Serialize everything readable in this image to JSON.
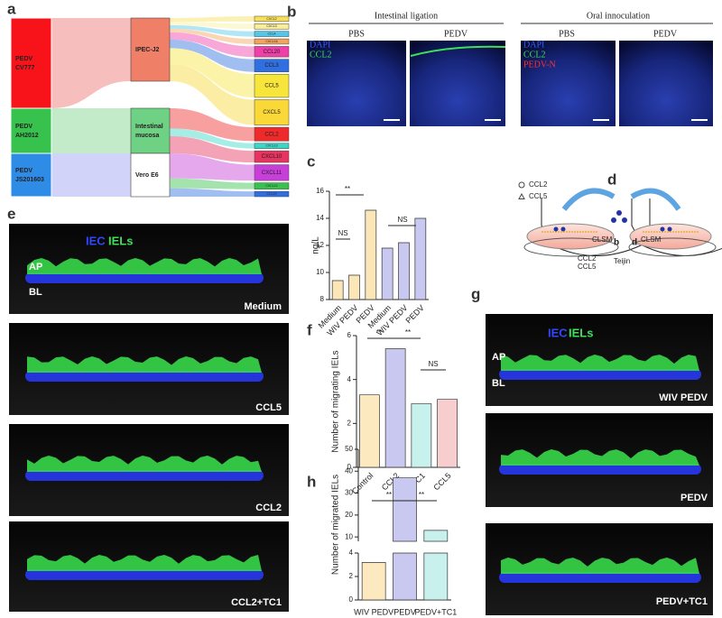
{
  "panel_labels": [
    "a",
    "b",
    "c",
    "d",
    "e",
    "f",
    "g",
    "h"
  ],
  "sankey": {
    "sources": [
      {
        "lines": [
          "PEDV",
          "CV777"
        ],
        "color": "#f8131b"
      },
      {
        "lines": [
          "PEDV",
          "AH2012"
        ],
        "color": "#36c24c"
      },
      {
        "lines": [
          "PEDV",
          "JS201603"
        ],
        "color": "#2f8ce6"
      }
    ],
    "cells": [
      {
        "lines": [
          "IPEC-J2"
        ],
        "color": "#f07f68"
      },
      {
        "lines": [
          "Intestinal",
          "mucosa"
        ],
        "color": "#6fd184"
      },
      {
        "lines": [
          "Vero E6"
        ],
        "color": "#ffffff"
      }
    ],
    "genes": [
      {
        "label": "CXCL2",
        "color": "#f6e05a"
      },
      {
        "label": "CXCL3",
        "color": "#f9ef9a"
      },
      {
        "label": "CCL4",
        "color": "#52c7e8"
      },
      {
        "label": "CXCL16",
        "color": "#f4a35c"
      },
      {
        "label": "CCL20",
        "color": "#ef3fa8"
      },
      {
        "label": "CCL3",
        "color": "#2f6fe0"
      },
      {
        "label": "CCL5",
        "color": "#f7e53c"
      },
      {
        "label": "CXCL5",
        "color": "#f9d838"
      },
      {
        "label": "CCL2",
        "color": "#ef2a2a"
      },
      {
        "label": "CXCL13",
        "color": "#3ad6c8"
      },
      {
        "label": "CXCL10",
        "color": "#e6335f"
      },
      {
        "label": "CXCL11",
        "color": "#c73fd8"
      },
      {
        "label": "CXCL12",
        "color": "#36c24c"
      },
      {
        "label": "CCL19",
        "color": "#2f6fe0"
      }
    ]
  },
  "panel_b": {
    "groups": [
      "Intestinal ligation",
      "Oral innoculation"
    ],
    "columns": [
      "PBS",
      "PEDV",
      "PBS",
      "PEDV"
    ],
    "stain_left": [
      "DAPI",
      "CCL2"
    ],
    "stain_right": [
      "DAPI",
      "CCL2",
      "PEDV-N"
    ]
  },
  "panel_d": {
    "labels": [
      "CLSM",
      "b",
      "d",
      "CLSM",
      "CCL2",
      "CCL5",
      "Teijin"
    ]
  },
  "panel_e": {
    "legend": [
      "IEC",
      "IELs"
    ],
    "layers": [
      "AP",
      "BL"
    ],
    "conditions": [
      "Medium",
      "CCL5",
      "CCL2",
      "CCL2+TC1"
    ]
  },
  "panel_g": {
    "legend": [
      "IEC",
      "IELs"
    ],
    "layers": [
      "AP",
      "BL"
    ],
    "conditions": [
      "WIV PEDV",
      "PEDV",
      "PEDV+TC1"
    ]
  },
  "chart_data": [
    {
      "type": "bar",
      "y_label": "ng/L",
      "categories": [
        "Medium",
        "WIV PEDV",
        "PEDV",
        "Medium",
        "WIV PEDV",
        "PEDV"
      ],
      "series": [
        {
          "name": "CCL2",
          "color": "#fbe6b8",
          "marker": "circle",
          "values": [
            9.4,
            9.8,
            14.6,
            null,
            null,
            null
          ]
        },
        {
          "name": "CCL5",
          "color": "#c9c8f0",
          "marker": "triangle",
          "values": [
            null,
            null,
            null,
            11.8,
            12.2,
            14.0
          ]
        }
      ],
      "ylim": [
        8,
        16
      ],
      "yticks": [
        8,
        10,
        12,
        14,
        16
      ],
      "annotations": [
        "**",
        "NS",
        "NS"
      ]
    },
    {
      "type": "bar",
      "y_label": "Number of migrating IELs",
      "categories": [
        "Control",
        "CCL2",
        "CCL2+TC1",
        "CCL5"
      ],
      "values": [
        3.3,
        5.4,
        2.9,
        3.1
      ],
      "colors": [
        "#fde9c0",
        "#c9c8f0",
        "#c8f1ee",
        "#f7cdcd"
      ],
      "ylim": [
        0,
        6
      ],
      "yticks": [
        0,
        2,
        4,
        6
      ],
      "annotations": [
        "**",
        "**",
        "NS"
      ]
    },
    {
      "type": "bar",
      "y_label": "Number of migrated IELs",
      "categories": [
        "WIV PEDV",
        "PEDV",
        "PEDV+TC1"
      ],
      "values": [
        3.2,
        37,
        13
      ],
      "colors": [
        "#fde9c0",
        "#c9c8f0",
        "#c8f1ee"
      ],
      "ylim": [
        0,
        50
      ],
      "yticks": [
        0,
        2,
        4,
        10,
        20,
        30,
        40,
        50
      ],
      "axis_break": [
        4,
        8
      ],
      "annotations": [
        "**",
        "**"
      ]
    }
  ]
}
